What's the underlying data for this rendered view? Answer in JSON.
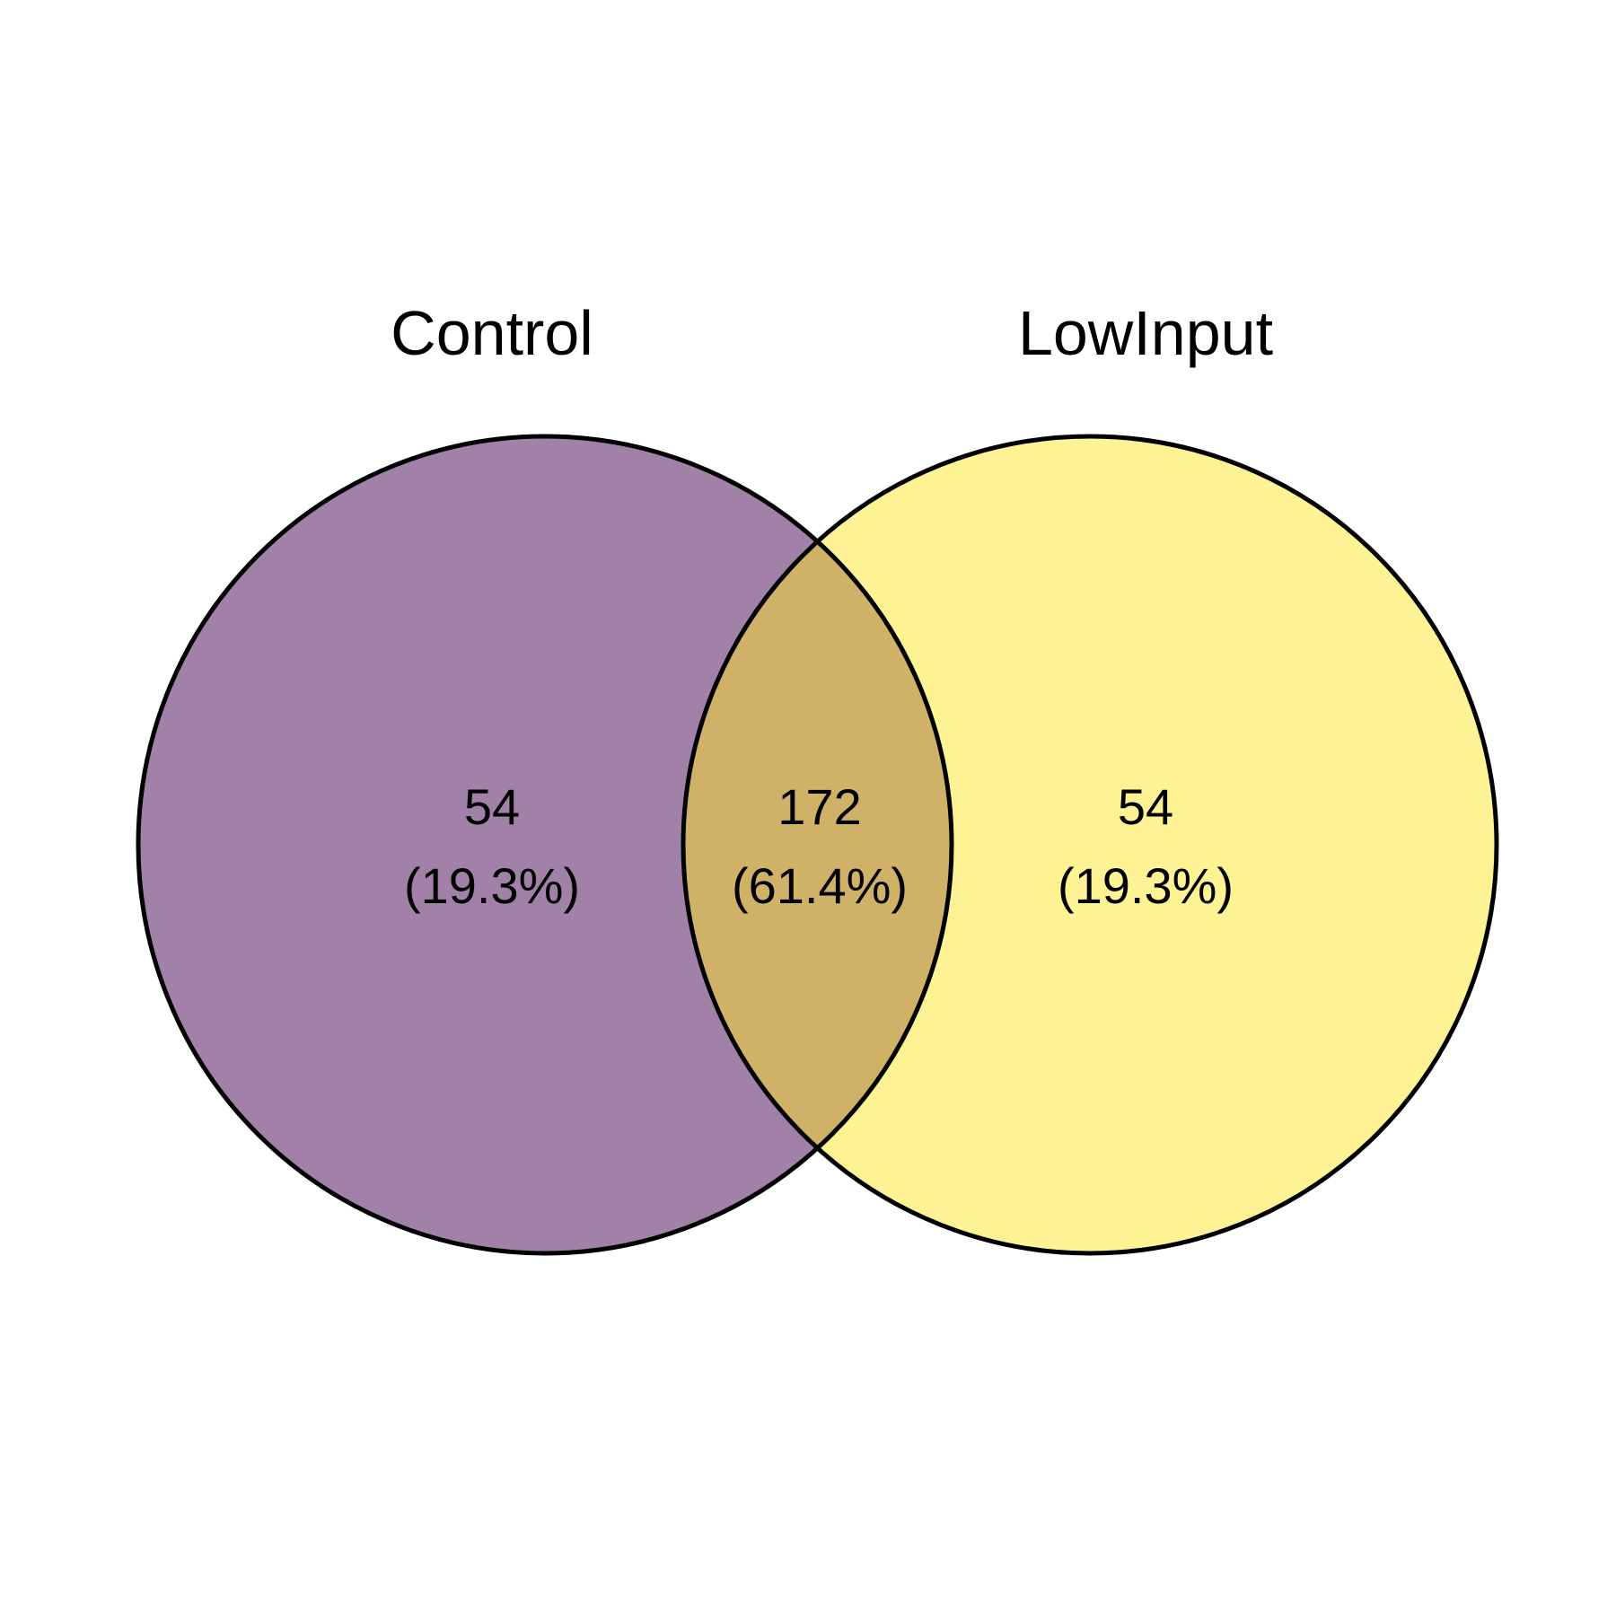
{
  "sets": [
    {
      "name": "Control",
      "color": "#a281a9"
    },
    {
      "name": "LowInput",
      "color": "#fdf395"
    }
  ],
  "overlap_color": "#cfb267",
  "regions": {
    "control_only": {
      "count": "54",
      "percent": "(19.3%)"
    },
    "both": {
      "count": "172",
      "percent": "(61.4%)"
    },
    "lowinput_only": {
      "count": "54",
      "percent": "(19.3%)"
    }
  }
}
